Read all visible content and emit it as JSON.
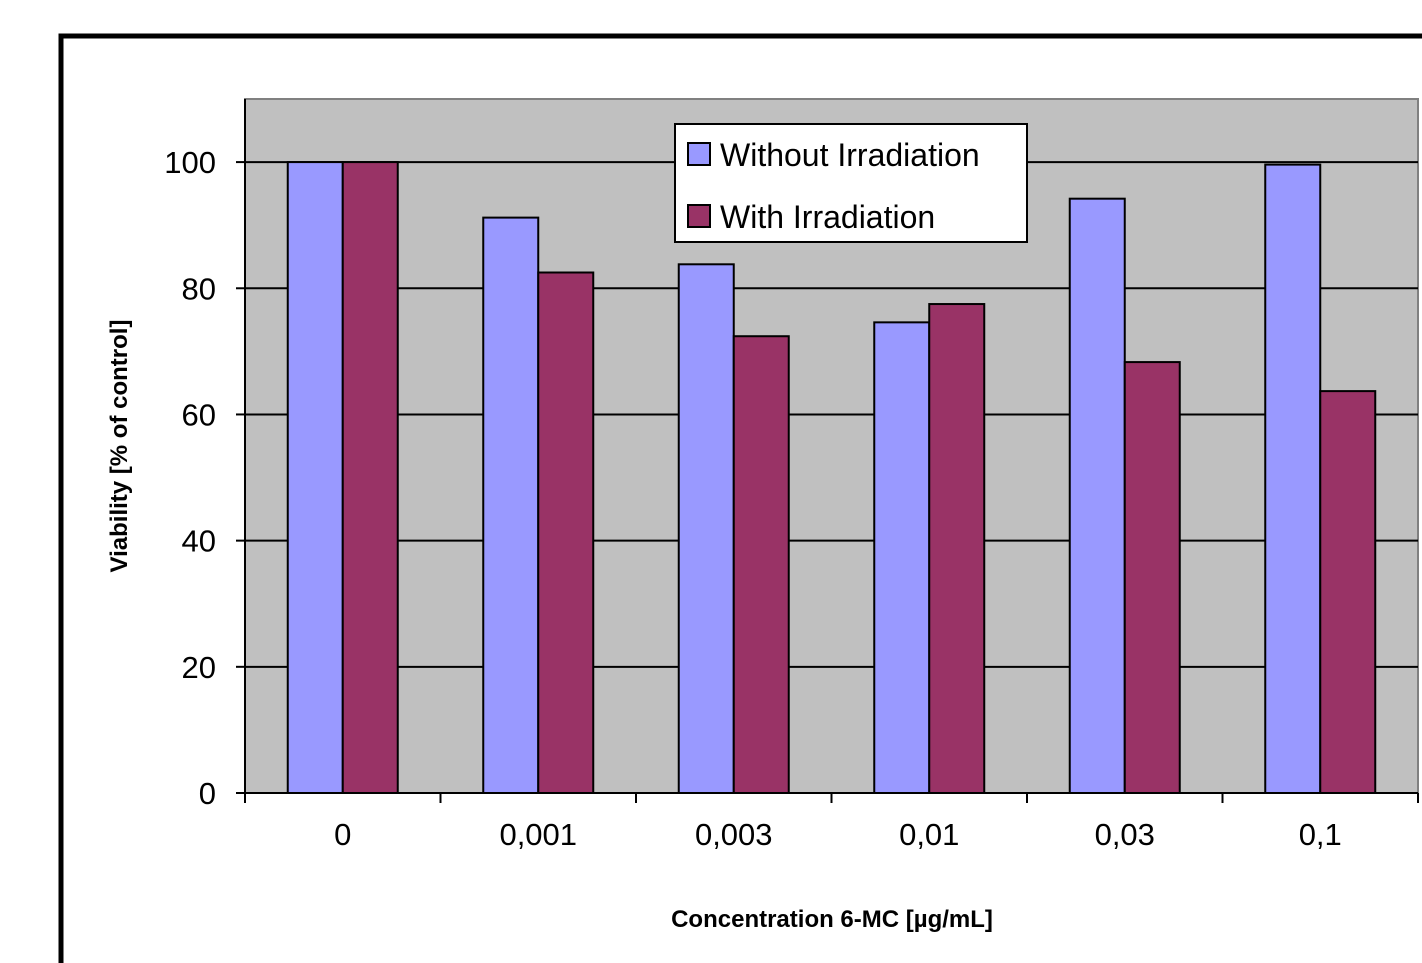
{
  "chart_data": {
    "type": "bar",
    "title": "",
    "xlabel": "Concentration 6-MC [µg/mL]",
    "ylabel": "Viability [% of control]",
    "categories": [
      "0",
      "0,001",
      "0,003",
      "0,01",
      "0,03",
      "0,1"
    ],
    "series": [
      {
        "name": "Without Irradiation",
        "color": "#9999ff",
        "values": [
          100,
          91.2,
          83.8,
          74.6,
          94.2,
          99.6
        ]
      },
      {
        "name": "With Irradiation",
        "color": "#993366",
        "values": [
          100,
          82.5,
          72.4,
          77.5,
          68.3,
          63.7
        ]
      }
    ],
    "ylim": [
      0,
      110
    ],
    "yticks": [
      0,
      20,
      40,
      60,
      80,
      100
    ],
    "grid": true,
    "legend_position": "top-center",
    "plot_background": "#c0c0c0"
  }
}
